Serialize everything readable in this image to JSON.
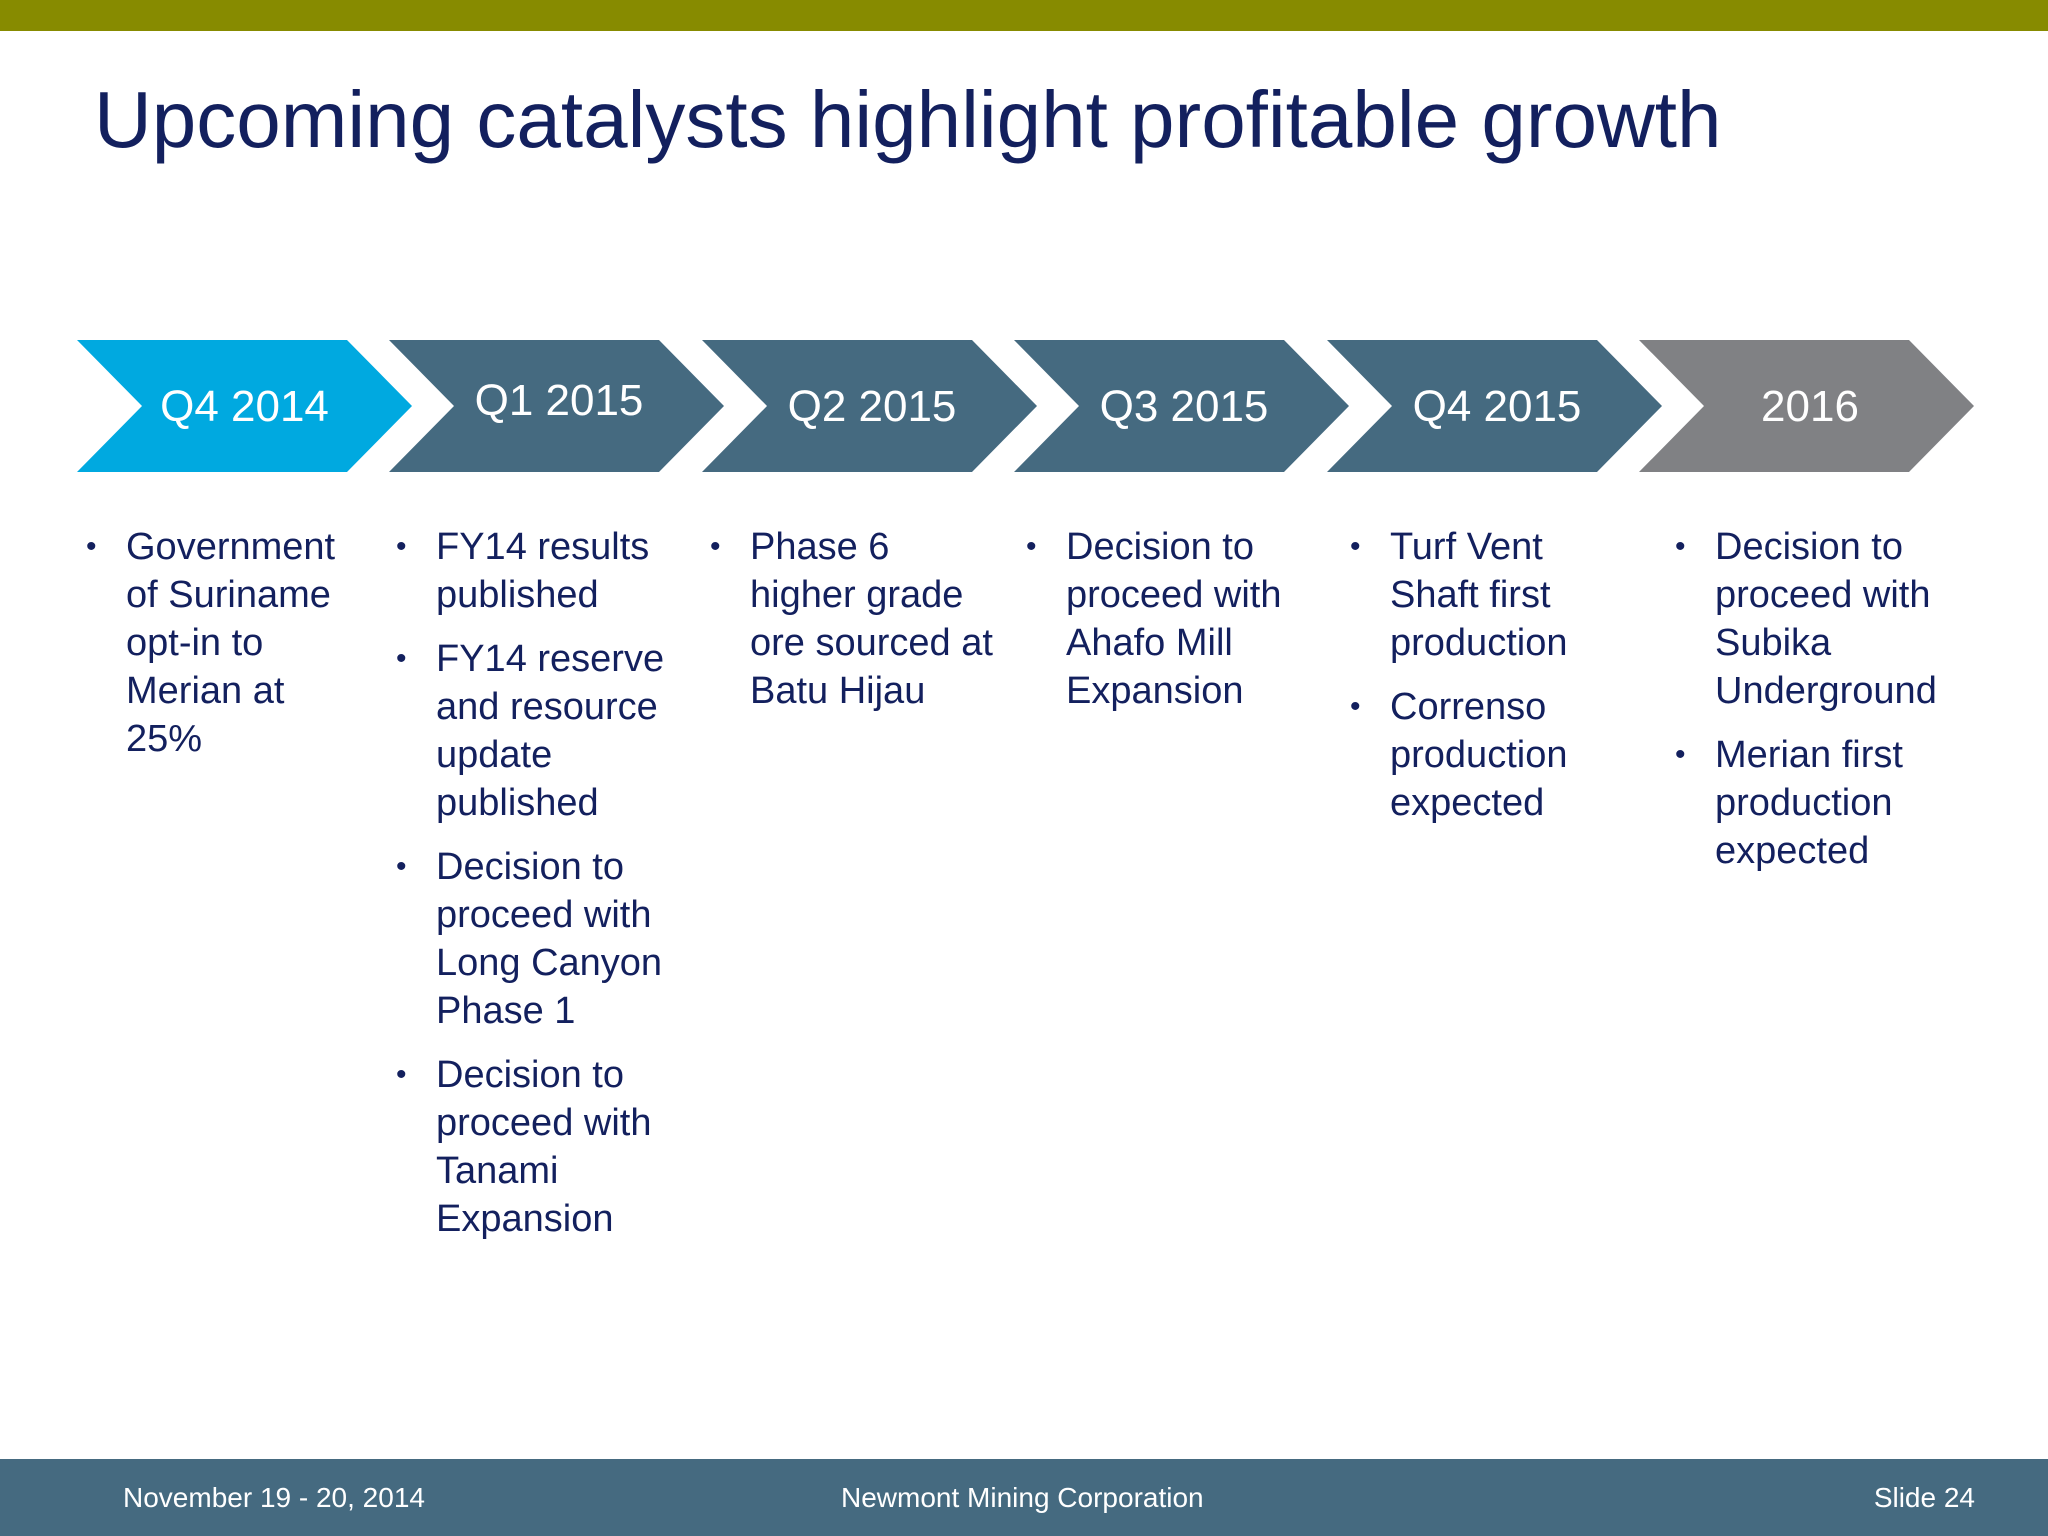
{
  "colors": {
    "top_bar": "#878b00",
    "title": "#13205e",
    "footer_bg": "#456a80",
    "arrow_current": "#00a9e0",
    "arrow_default": "#456a80",
    "arrow_future": "#808184",
    "text": "#13205e"
  },
  "title": "Upcoming catalysts highlight profitable growth",
  "timeline": [
    {
      "label": "Q4 2014",
      "color": "#00a9e0",
      "items": [
        "Government of Suriname opt-in to Merian at 25%"
      ]
    },
    {
      "label": "Q1 2015",
      "color": "#456a80",
      "items": [
        "FY14 results published",
        "FY14 reserve and resource update published",
        "Decision to proceed with Long Canyon Phase 1",
        "Decision to proceed with Tanami Expansion"
      ]
    },
    {
      "label": "Q2 2015",
      "color": "#456a80",
      "items": [
        "Phase 6 higher grade ore sourced at Batu Hijau"
      ]
    },
    {
      "label": "Q3 2015",
      "color": "#456a80",
      "items": [
        "Decision to proceed with Ahafo Mill Expansion"
      ]
    },
    {
      "label": "Q4 2015",
      "color": "#456a80",
      "items": [
        "Turf Vent Shaft first production",
        "Correnso production expected"
      ]
    },
    {
      "label": "2016",
      "color": "#808184",
      "items": [
        "Decision to proceed with Subika Underground",
        "Merian first production expected"
      ]
    }
  ],
  "bullet_char": "•",
  "footer": {
    "date": "November 19 - 20, 2014",
    "company": "Newmont Mining Corporation",
    "slide": "Slide 24"
  }
}
